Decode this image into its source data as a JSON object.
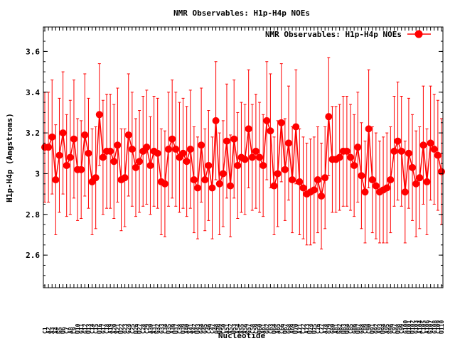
{
  "chart_data": {
    "type": "line",
    "title": "NMR Observables: H1p-H4p NOEs",
    "xlabel": "Nucleotide",
    "ylabel": "H1p-H4p (Angstroms)",
    "ylim": [
      2.44,
      3.72
    ],
    "yticks": [
      "2.6",
      "2.8",
      "3",
      "3.2",
      "3.4",
      "3.6"
    ],
    "grid": false,
    "legend_position": "top-right",
    "series": [
      {
        "name": "NMR Observables: H1p-H4p NOEs",
        "color": "#ff0000",
        "marker": "circle",
        "error_bars": "symmetric",
        "y": [
          3.13,
          3.13,
          3.18,
          2.97,
          3.09,
          3.2,
          3.04,
          3.08,
          3.17,
          3.02,
          3.02,
          3.19,
          3.1,
          2.96,
          2.98,
          3.29,
          3.08,
          3.11,
          3.11,
          3.06,
          3.14,
          2.97,
          2.98,
          3.19,
          3.12,
          3.03,
          3.06,
          3.11,
          3.13,
          3.04,
          3.11,
          3.1,
          2.96,
          2.95,
          3.12,
          3.17,
          3.12,
          3.08,
          3.1,
          3.06,
          3.12,
          2.97,
          2.93,
          3.14,
          2.97,
          3.04,
          2.93,
          3.26,
          2.95,
          3.0,
          3.16,
          2.94,
          3.17,
          3.04,
          3.08,
          3.07,
          3.22,
          3.08,
          3.11,
          3.08,
          3.04,
          3.26,
          3.21,
          2.94,
          3.0,
          3.25,
          3.02,
          3.15,
          2.97,
          3.23,
          2.96,
          2.93,
          2.9,
          2.91,
          2.92,
          2.97,
          2.89,
          2.98,
          3.28,
          3.07,
          3.07,
          3.08,
          3.11,
          3.11,
          3.08,
          3.04,
          3.13,
          2.99,
          2.91,
          3.22,
          2.97,
          2.94,
          2.91,
          2.92,
          2.93,
          2.97,
          3.11,
          3.16,
          3.11,
          2.91,
          3.1,
          3.03,
          2.95,
          2.98,
          3.14,
          2.96,
          3.15,
          3.12,
          3.09,
          3.01
        ],
        "err": [
          0.27,
          0.27,
          0.28,
          0.27,
          0.28,
          0.3,
          0.25,
          0.28,
          0.29,
          0.25,
          0.24,
          0.3,
          0.27,
          0.26,
          0.25,
          0.25,
          0.28,
          0.28,
          0.28,
          0.28,
          0.28,
          0.25,
          0.24,
          0.3,
          0.28,
          0.24,
          0.25,
          0.27,
          0.28,
          0.24,
          0.27,
          0.27,
          0.26,
          0.26,
          0.28,
          0.29,
          0.28,
          0.27,
          0.27,
          0.27,
          0.29,
          0.26,
          0.25,
          0.28,
          0.25,
          0.27,
          0.25,
          0.29,
          0.25,
          0.26,
          0.28,
          0.25,
          0.29,
          0.26,
          0.27,
          0.27,
          0.29,
          0.26,
          0.28,
          0.27,
          0.25,
          0.29,
          0.28,
          0.24,
          0.26,
          0.29,
          0.25,
          0.28,
          0.26,
          0.28,
          0.26,
          0.25,
          0.25,
          0.26,
          0.26,
          0.26,
          0.26,
          0.25,
          0.29,
          0.26,
          0.26,
          0.26,
          0.27,
          0.27,
          0.26,
          0.25,
          0.27,
          0.26,
          0.25,
          0.29,
          0.26,
          0.26,
          0.25,
          0.26,
          0.27,
          0.26,
          0.27,
          0.29,
          0.27,
          0.25,
          0.27,
          0.26,
          0.26,
          0.25,
          0.29,
          0.26,
          0.28,
          0.27,
          0.27,
          0.26
        ]
      }
    ],
    "xtick_labels": [
      "C1",
      "A2",
      "A3",
      "A4",
      "G5",
      "U6",
      "C7",
      "A8",
      "C9",
      "U10",
      "G11",
      "G12",
      "U13",
      "C14",
      "C15",
      "U16",
      "G17",
      "C18",
      "A19",
      "A20",
      "A21",
      "U22",
      "G23",
      "G24",
      "C25",
      "U26",
      "U27",
      "C28",
      "C29",
      "A30",
      "A31",
      "G32",
      "G33",
      "C34",
      "U35",
      "A36",
      "U37",
      "C38",
      "U39",
      "A40",
      "A41",
      "A42",
      "U43",
      "G44",
      "G45",
      "C46",
      "C47",
      "G48",
      "U49",
      "C50",
      "A51",
      "A52",
      "U53",
      "A54",
      "A55",
      "A56",
      "G57",
      "C58",
      "C59",
      "U60",
      "A61",
      "G62",
      "C63",
      "U64",
      "A65",
      "C66",
      "U67",
      "G68",
      "A69",
      "U70",
      "A71",
      "C72",
      "A73",
      "U74",
      "U75",
      "C76",
      "C77",
      "A78",
      "G79",
      "G80",
      "A81",
      "G82",
      "U83",
      "U84",
      "C85",
      "G86",
      "U87",
      "G88",
      "C89",
      "C90",
      "U91",
      "G92",
      "A93",
      "U94",
      "A95",
      "G96",
      "C97",
      "U98",
      "C99",
      "G100",
      "U101",
      "U102",
      "G103",
      "A104",
      "C105",
      "A106",
      "G107",
      "G108",
      "C109",
      "U110"
    ]
  }
}
